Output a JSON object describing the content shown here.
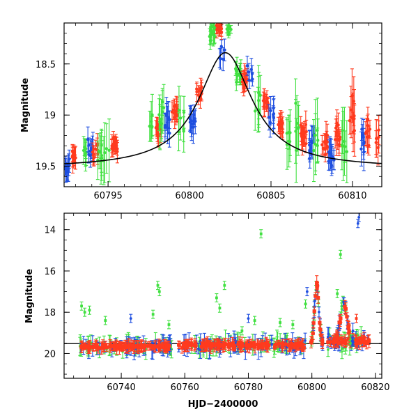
{
  "chart_data": [
    {
      "type": "scatter",
      "title": "",
      "xlabel": "",
      "ylabel": "Magnitude",
      "xlim": [
        60792.3,
        60811.8
      ],
      "ylim": [
        19.7,
        18.1
      ],
      "y_inverted": true,
      "grid": false,
      "legend": "none",
      "xticks": [
        60795,
        60800,
        60805,
        60810
      ],
      "xtick_labels": [
        "60795",
        "60800",
        "60805",
        "60810"
      ],
      "yticks": [
        18.5,
        19,
        19.5
      ],
      "ytick_labels": [
        "18.5",
        "19",
        "19.5"
      ],
      "colors": {
        "blue": "#1f4fe0",
        "green": "#40e040",
        "red": "#ff3a1e",
        "model": "#000000"
      },
      "model_curve": {
        "x0": 60802.2,
        "peak_mag": 18.39,
        "base_mag": 19.52,
        "width": 2.0
      },
      "clusters": [
        {
          "x": 60792.5,
          "color": "blue",
          "mag": 19.5,
          "spread": 0.12,
          "n": 10,
          "err": 0.1
        },
        {
          "x": 60792.9,
          "color": "red",
          "mag": 19.4,
          "spread": 0.1,
          "n": 14,
          "err": 0.08
        },
        {
          "x": 60793.6,
          "color": "green",
          "mag": 19.35,
          "spread": 0.1,
          "n": 6,
          "err": 0.12
        },
        {
          "x": 60793.9,
          "color": "blue",
          "mag": 19.35,
          "spread": 0.15,
          "n": 10,
          "err": 0.1
        },
        {
          "x": 60794.2,
          "color": "red",
          "mag": 19.35,
          "spread": 0.1,
          "n": 10,
          "err": 0.08
        },
        {
          "x": 60794.5,
          "color": "green",
          "mag": 19.4,
          "spread": 0.15,
          "n": 8,
          "err": 0.2
        },
        {
          "x": 60794.9,
          "color": "green",
          "mag": 19.3,
          "spread": 0.2,
          "n": 4,
          "err": 0.3
        },
        {
          "x": 60795.4,
          "color": "red",
          "mag": 19.3,
          "spread": 0.1,
          "n": 18,
          "err": 0.08
        },
        {
          "x": 60797.6,
          "color": "green",
          "mag": 19.1,
          "spread": 0.15,
          "n": 6,
          "err": 0.15
        },
        {
          "x": 60798.1,
          "color": "red",
          "mag": 19.15,
          "spread": 0.1,
          "n": 14,
          "err": 0.08
        },
        {
          "x": 60798.3,
          "color": "green",
          "mag": 19.0,
          "spread": 0.25,
          "n": 8,
          "err": 0.2
        },
        {
          "x": 60798.6,
          "color": "blue",
          "mag": 19.1,
          "spread": 0.3,
          "n": 10,
          "err": 0.12
        },
        {
          "x": 60799.1,
          "color": "red",
          "mag": 18.95,
          "spread": 0.12,
          "n": 16,
          "err": 0.08
        },
        {
          "x": 60799.5,
          "color": "green",
          "mag": 19.0,
          "spread": 0.25,
          "n": 6,
          "err": 0.2
        },
        {
          "x": 60800.2,
          "color": "blue",
          "mag": 19.1,
          "spread": 0.2,
          "n": 12,
          "err": 0.12
        },
        {
          "x": 60800.6,
          "color": "red",
          "mag": 18.8,
          "spread": 0.1,
          "n": 10,
          "err": 0.08
        },
        {
          "x": 60801.4,
          "color": "green",
          "mag": 18.2,
          "spread": 0.1,
          "n": 14,
          "err": 0.08
        },
        {
          "x": 60801.8,
          "color": "red",
          "mag": 18.15,
          "spread": 0.06,
          "n": 12,
          "err": 0.06
        },
        {
          "x": 60802.0,
          "color": "blue",
          "mag": 18.4,
          "spread": 0.25,
          "n": 5,
          "err": 0.1
        },
        {
          "x": 60802.4,
          "color": "green",
          "mag": 18.15,
          "spread": 0.08,
          "n": 10,
          "err": 0.06
        },
        {
          "x": 60803.0,
          "color": "green",
          "mag": 18.6,
          "spread": 0.15,
          "n": 12,
          "err": 0.1
        },
        {
          "x": 60803.4,
          "color": "red",
          "mag": 18.65,
          "spread": 0.1,
          "n": 14,
          "err": 0.08
        },
        {
          "x": 60803.7,
          "color": "blue",
          "mag": 18.6,
          "spread": 0.1,
          "n": 6,
          "err": 0.1
        },
        {
          "x": 60804.2,
          "color": "green",
          "mag": 18.9,
          "spread": 0.25,
          "n": 8,
          "err": 0.2
        },
        {
          "x": 60804.7,
          "color": "red",
          "mag": 18.9,
          "spread": 0.12,
          "n": 14,
          "err": 0.08
        },
        {
          "x": 60805.0,
          "color": "blue",
          "mag": 19.0,
          "spread": 0.15,
          "n": 8,
          "err": 0.12
        },
        {
          "x": 60805.6,
          "color": "red",
          "mag": 19.1,
          "spread": 0.12,
          "n": 14,
          "err": 0.08
        },
        {
          "x": 60806.0,
          "color": "green",
          "mag": 19.2,
          "spread": 0.25,
          "n": 6,
          "err": 0.2
        },
        {
          "x": 60806.6,
          "color": "green",
          "mag": 19.1,
          "spread": 0.3,
          "n": 6,
          "err": 0.25
        },
        {
          "x": 60807.0,
          "color": "red",
          "mag": 19.2,
          "spread": 0.15,
          "n": 16,
          "err": 0.1
        },
        {
          "x": 60807.5,
          "color": "blue",
          "mag": 19.3,
          "spread": 0.15,
          "n": 10,
          "err": 0.12
        },
        {
          "x": 60807.8,
          "color": "green",
          "mag": 19.2,
          "spread": 0.3,
          "n": 6,
          "err": 0.25
        },
        {
          "x": 60808.3,
          "color": "red",
          "mag": 19.3,
          "spread": 0.15,
          "n": 12,
          "err": 0.1
        },
        {
          "x": 60808.7,
          "color": "blue",
          "mag": 19.4,
          "spread": 0.15,
          "n": 10,
          "err": 0.12
        },
        {
          "x": 60809.1,
          "color": "red",
          "mag": 19.2,
          "spread": 0.2,
          "n": 12,
          "err": 0.12
        },
        {
          "x": 60809.5,
          "color": "green",
          "mag": 19.2,
          "spread": 0.3,
          "n": 6,
          "err": 0.25
        },
        {
          "x": 60810.0,
          "color": "red",
          "mag": 19.0,
          "spread": 0.4,
          "n": 10,
          "err": 0.2
        },
        {
          "x": 60810.6,
          "color": "blue",
          "mag": 19.3,
          "spread": 0.3,
          "n": 8,
          "err": 0.15
        },
        {
          "x": 60810.9,
          "color": "red",
          "mag": 19.2,
          "spread": 0.2,
          "n": 10,
          "err": 0.12
        },
        {
          "x": 60811.5,
          "color": "red",
          "mag": 19.2,
          "spread": 0.2,
          "n": 6,
          "err": 0.15
        }
      ]
    },
    {
      "type": "scatter",
      "title": "",
      "xlabel": "HJD−2400000",
      "ylabel": "Magnitude",
      "xlim": [
        60722,
        60822
      ],
      "ylim": [
        21.2,
        13.2
      ],
      "y_inverted": true,
      "grid": false,
      "legend": "none",
      "xticks": [
        60740,
        60760,
        60780,
        60800,
        60820
      ],
      "xtick_labels": [
        "60740",
        "60760",
        "60780",
        "60800",
        "60820"
      ],
      "yticks": [
        14,
        16,
        18,
        20
      ],
      "ytick_labels": [
        "14",
        "16",
        "18",
        "20"
      ],
      "colors": {
        "blue": "#1f4fe0",
        "green": "#40e040",
        "red": "#ff3a1e",
        "model": "#000000"
      },
      "baseline_mag": 19.52,
      "segments": [
        {
          "x0": 60727,
          "x1": 60756,
          "mag": 19.65,
          "spread": 0.2
        },
        {
          "x0": 60758,
          "x1": 60798,
          "mag": 19.6,
          "spread": 0.25
        },
        {
          "x0": 60805,
          "x1": 60818,
          "mag": 19.4,
          "spread": 0.4
        }
      ],
      "outbursts": [
        {
          "x": 60801.5,
          "peak_mag": 16.7,
          "width": 1.6
        },
        {
          "x": 60810,
          "peak_mag": 17.5,
          "width": 2.5
        }
      ],
      "outliers": [
        {
          "x": 60727.5,
          "mag": 17.7,
          "color": "green"
        },
        {
          "x": 60728.5,
          "mag": 18.0,
          "color": "green"
        },
        {
          "x": 60730,
          "mag": 17.9,
          "color": "green"
        },
        {
          "x": 60735,
          "mag": 18.4,
          "color": "green"
        },
        {
          "x": 60743,
          "mag": 18.3,
          "color": "blue"
        },
        {
          "x": 60750,
          "mag": 18.1,
          "color": "green"
        },
        {
          "x": 60751.5,
          "mag": 16.7,
          "color": "green"
        },
        {
          "x": 60752,
          "mag": 17.0,
          "color": "green"
        },
        {
          "x": 60755,
          "mag": 18.6,
          "color": "green"
        },
        {
          "x": 60770,
          "mag": 17.3,
          "color": "green"
        },
        {
          "x": 60771,
          "mag": 17.8,
          "color": "green"
        },
        {
          "x": 60772.5,
          "mag": 16.7,
          "color": "green"
        },
        {
          "x": 60778,
          "mag": 18.9,
          "color": "green"
        },
        {
          "x": 60780,
          "mag": 18.3,
          "color": "blue"
        },
        {
          "x": 60782,
          "mag": 18.4,
          "color": "green"
        },
        {
          "x": 60784,
          "mag": 14.2,
          "color": "green"
        },
        {
          "x": 60790,
          "mag": 18.5,
          "color": "green"
        },
        {
          "x": 60794,
          "mag": 18.6,
          "color": "green"
        },
        {
          "x": 60798.5,
          "mag": 17.0,
          "color": "blue"
        },
        {
          "x": 60798,
          "mag": 17.6,
          "color": "green"
        },
        {
          "x": 60808,
          "mag": 17.1,
          "color": "green"
        },
        {
          "x": 60809,
          "mag": 15.2,
          "color": "green"
        },
        {
          "x": 60814,
          "mag": 18.3,
          "color": "red"
        },
        {
          "x": 60814.5,
          "mag": 13.7,
          "color": "blue"
        },
        {
          "x": 60814.8,
          "mag": 13.4,
          "color": "blue"
        }
      ]
    }
  ]
}
